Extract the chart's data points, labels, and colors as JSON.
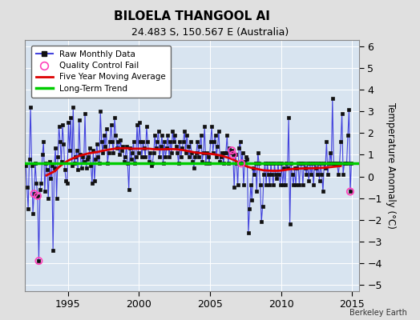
{
  "title": "BILOELA THANGOOL AI",
  "subtitle": "24.483 S, 150.567 E (Australia)",
  "credit": "Berkeley Earth",
  "ylabel": "Temperature Anomaly (°C)",
  "xlim": [
    1992.0,
    2015.5
  ],
  "ylim": [
    -5.3,
    6.3
  ],
  "yticks": [
    -5,
    -4,
    -3,
    -2,
    -1,
    0,
    1,
    2,
    3,
    4,
    5,
    6
  ],
  "xticks": [
    1995,
    2000,
    2005,
    2010,
    2015
  ],
  "green_line_y": 0.62,
  "background_color": "#e0e0e0",
  "plot_background": "#d8e4f0",
  "grid_color": "#ffffff",
  "raw_line_color": "#4444dd",
  "raw_dot_color": "#111111",
  "moving_avg_color": "#dd0000",
  "trend_color": "#00cc00",
  "qc_fail_color": "#ff44bb",
  "raw_data": {
    "times": [
      1992.042,
      1992.125,
      1992.208,
      1992.292,
      1992.375,
      1992.458,
      1992.542,
      1992.625,
      1992.708,
      1992.792,
      1992.875,
      1992.958,
      1993.042,
      1993.125,
      1993.208,
      1993.292,
      1993.375,
      1993.458,
      1993.542,
      1993.625,
      1993.708,
      1993.792,
      1993.875,
      1993.958,
      1994.042,
      1994.125,
      1994.208,
      1994.292,
      1994.375,
      1994.458,
      1994.542,
      1994.625,
      1994.708,
      1994.792,
      1994.875,
      1994.958,
      1995.042,
      1995.125,
      1995.208,
      1995.292,
      1995.375,
      1995.458,
      1995.542,
      1995.625,
      1995.708,
      1995.792,
      1995.875,
      1995.958,
      1996.042,
      1996.125,
      1996.208,
      1996.292,
      1996.375,
      1996.458,
      1996.542,
      1996.625,
      1996.708,
      1996.792,
      1996.875,
      1996.958,
      1997.042,
      1997.125,
      1997.208,
      1997.292,
      1997.375,
      1997.458,
      1997.542,
      1997.625,
      1997.708,
      1997.792,
      1997.875,
      1997.958,
      1998.042,
      1998.125,
      1998.208,
      1998.292,
      1998.375,
      1998.458,
      1998.542,
      1998.625,
      1998.708,
      1998.792,
      1998.875,
      1998.958,
      1999.042,
      1999.125,
      1999.208,
      1999.292,
      1999.375,
      1999.458,
      1999.542,
      1999.625,
      1999.708,
      1999.792,
      1999.875,
      1999.958,
      2000.042,
      2000.125,
      2000.208,
      2000.292,
      2000.375,
      2000.458,
      2000.542,
      2000.625,
      2000.708,
      2000.792,
      2000.875,
      2000.958,
      2001.042,
      2001.125,
      2001.208,
      2001.292,
      2001.375,
      2001.458,
      2001.542,
      2001.625,
      2001.708,
      2001.792,
      2001.875,
      2001.958,
      2002.042,
      2002.125,
      2002.208,
      2002.292,
      2002.375,
      2002.458,
      2002.542,
      2002.625,
      2002.708,
      2002.792,
      2002.875,
      2002.958,
      2003.042,
      2003.125,
      2003.208,
      2003.292,
      2003.375,
      2003.458,
      2003.542,
      2003.625,
      2003.708,
      2003.792,
      2003.875,
      2003.958,
      2004.042,
      2004.125,
      2004.208,
      2004.292,
      2004.375,
      2004.458,
      2004.542,
      2004.625,
      2004.708,
      2004.792,
      2004.875,
      2004.958,
      2005.042,
      2005.125,
      2005.208,
      2005.292,
      2005.375,
      2005.458,
      2005.542,
      2005.625,
      2005.708,
      2005.792,
      2005.875,
      2005.958,
      2006.042,
      2006.125,
      2006.208,
      2006.292,
      2006.375,
      2006.458,
      2006.542,
      2006.625,
      2006.708,
      2006.792,
      2006.875,
      2006.958,
      2007.042,
      2007.125,
      2007.208,
      2007.292,
      2007.375,
      2007.458,
      2007.542,
      2007.625,
      2007.708,
      2007.792,
      2007.875,
      2007.958,
      2008.042,
      2008.125,
      2008.208,
      2008.292,
      2008.375,
      2008.458,
      2008.542,
      2008.625,
      2008.708,
      2008.792,
      2008.875,
      2008.958,
      2009.042,
      2009.125,
      2009.208,
      2009.292,
      2009.375,
      2009.458,
      2009.542,
      2009.625,
      2009.708,
      2009.792,
      2009.875,
      2009.958,
      2010.042,
      2010.125,
      2010.208,
      2010.292,
      2010.375,
      2010.458,
      2010.542,
      2010.625,
      2010.708,
      2010.792,
      2010.875,
      2010.958,
      2011.042,
      2011.125,
      2011.208,
      2011.292,
      2011.375,
      2011.458,
      2011.542,
      2011.625,
      2011.708,
      2011.792,
      2011.875,
      2011.958,
      2012.042,
      2012.125,
      2012.208,
      2012.292,
      2012.375,
      2012.458,
      2012.542,
      2012.625,
      2012.708,
      2012.792,
      2012.875,
      2012.958,
      2013.042,
      2013.125,
      2013.208,
      2013.292,
      2013.375,
      2013.458,
      2013.542,
      2013.625,
      2013.708,
      2013.792,
      2013.875,
      2013.958,
      2014.042,
      2014.125,
      2014.208,
      2014.292,
      2014.375,
      2014.458,
      2014.542,
      2014.625,
      2014.708,
      2014.792,
      2014.875,
      2014.958
    ],
    "values": [
      0.5,
      -0.5,
      -1.5,
      0.8,
      3.2,
      0.5,
      -1.7,
      -0.8,
      0.6,
      -0.3,
      -0.9,
      -3.9,
      -0.6,
      -0.3,
      1.0,
      1.6,
      -0.7,
      0.6,
      0.3,
      -1.0,
      0.7,
      -0.1,
      0.5,
      -3.4,
      0.4,
      1.3,
      -1.0,
      0.9,
      2.3,
      1.6,
      0.7,
      2.4,
      1.5,
      0.3,
      -0.2,
      -0.3,
      2.5,
      1.2,
      2.7,
      0.5,
      3.2,
      0.6,
      0.9,
      1.2,
      0.3,
      2.6,
      1.0,
      0.4,
      0.9,
      0.7,
      2.9,
      0.4,
      0.8,
      0.9,
      1.3,
      0.5,
      -0.3,
      1.2,
      -0.2,
      0.8,
      1.5,
      0.9,
      0.6,
      3.0,
      1.6,
      1.1,
      1.9,
      1.4,
      2.2,
      0.6,
      1.1,
      1.6,
      2.4,
      1.6,
      1.1,
      2.7,
      1.9,
      1.3,
      1.6,
      1.0,
      1.7,
      1.2,
      1.4,
      0.7,
      0.9,
      1.4,
      0.6,
      -0.6,
      1.3,
      0.8,
      1.1,
      1.6,
      0.6,
      0.9,
      2.4,
      1.1,
      2.5,
      1.6,
      0.9,
      1.6,
      1.3,
      0.9,
      2.3,
      1.6,
      0.7,
      1.1,
      0.5,
      0.6,
      1.1,
      1.9,
      1.3,
      1.6,
      2.1,
      0.9,
      1.4,
      1.9,
      0.6,
      1.6,
      0.9,
      1.3,
      1.9,
      0.9,
      1.6,
      1.1,
      2.1,
      1.6,
      1.9,
      1.4,
      1.1,
      0.6,
      1.6,
      0.9,
      1.3,
      1.6,
      2.1,
      1.1,
      1.9,
      1.4,
      0.9,
      1.6,
      1.1,
      0.7,
      0.4,
      0.9,
      1.1,
      1.6,
      0.9,
      1.4,
      1.9,
      0.7,
      1.1,
      2.3,
      0.6,
      1.1,
      0.9,
      0.6,
      1.6,
      2.3,
      1.1,
      1.6,
      1.9,
      0.9,
      1.4,
      2.1,
      0.7,
      0.9,
      1.1,
      0.6,
      1.1,
      1.1,
      1.9,
      0.6,
      1.3,
      1.1,
      1.2,
      1.0,
      -0.5,
      1.0,
      0.6,
      -0.4,
      1.3,
      1.6,
      0.6,
      1.1,
      -0.4,
      0.7,
      0.9,
      0.8,
      -2.6,
      -1.5,
      -0.4,
      -1.1,
      0.4,
      0.1,
      0.6,
      -0.7,
      1.1,
      0.6,
      -0.4,
      -2.1,
      -1.4,
      0.1,
      0.6,
      -0.4,
      0.6,
      0.1,
      -0.4,
      0.6,
      0.1,
      -0.4,
      0.6,
      0.1,
      -0.1,
      0.6,
      0.1,
      -0.4,
      0.6,
      -0.4,
      0.4,
      -0.4,
      0.6,
      0.4,
      2.7,
      -2.2,
      0.6,
      0.1,
      -0.4,
      0.4,
      -0.4,
      0.4,
      0.6,
      -0.4,
      0.6,
      0.6,
      -0.4,
      0.6,
      0.4,
      0.1,
      0.6,
      -0.2,
      0.6,
      0.1,
      0.6,
      -0.4,
      0.6,
      0.4,
      0.1,
      0.6,
      -0.2,
      0.6,
      0.1,
      -0.7,
      0.6,
      0.4,
      1.6,
      0.1,
      0.6,
      1.1,
      0.6,
      3.6,
      0.6,
      0.6,
      0.6,
      0.6,
      0.1,
      0.6,
      1.6,
      2.9,
      0.1,
      0.6,
      0.6,
      0.6,
      1.9,
      3.1,
      -0.7,
      0.6
    ],
    "qc_fail_times": [
      1992.625,
      1992.875,
      1992.958,
      2006.542,
      2006.625,
      2007.208,
      2014.875
    ],
    "qc_fail_values": [
      -0.8,
      -0.9,
      -3.9,
      1.2,
      1.0,
      0.6,
      -0.7
    ]
  },
  "moving_avg_times": [
    1993.5,
    1993.8,
    1994.1,
    1994.4,
    1994.7,
    1995.0,
    1995.3,
    1995.6,
    1995.9,
    1996.2,
    1996.5,
    1996.8,
    1997.1,
    1997.4,
    1997.7,
    1998.0,
    1998.3,
    1998.6,
    1998.9,
    1999.2,
    1999.5,
    1999.8,
    2000.1,
    2000.4,
    2000.7,
    2001.0,
    2001.3,
    2001.6,
    2001.9,
    2002.2,
    2002.5,
    2002.8,
    2003.1,
    2003.4,
    2003.7,
    2004.0,
    2004.3,
    2004.6,
    2004.9,
    2005.2,
    2005.5,
    2005.8,
    2006.1,
    2006.4,
    2006.7,
    2007.0,
    2007.3,
    2007.6,
    2007.9,
    2008.2,
    2008.5,
    2008.8,
    2009.1,
    2009.4,
    2009.7,
    2010.0,
    2010.3,
    2010.6,
    2010.9,
    2011.2,
    2011.5,
    2011.8,
    2012.1,
    2012.4,
    2012.7,
    2013.0,
    2013.3,
    2013.6,
    2013.9,
    2014.2
  ],
  "moving_avg_values": [
    0.05,
    0.15,
    0.25,
    0.45,
    0.6,
    0.72,
    0.82,
    0.9,
    0.97,
    1.02,
    1.07,
    1.1,
    1.13,
    1.18,
    1.22,
    1.25,
    1.28,
    1.3,
    1.3,
    1.3,
    1.28,
    1.28,
    1.28,
    1.28,
    1.28,
    1.26,
    1.25,
    1.25,
    1.26,
    1.26,
    1.26,
    1.24,
    1.22,
    1.18,
    1.14,
    1.1,
    1.08,
    1.06,
    1.05,
    1.03,
    1.0,
    0.96,
    0.9,
    0.84,
    0.76,
    0.65,
    0.56,
    0.46,
    0.4,
    0.36,
    0.32,
    0.28,
    0.27,
    0.26,
    0.26,
    0.27,
    0.3,
    0.33,
    0.35,
    0.36,
    0.37,
    0.37,
    0.38,
    0.38,
    0.39,
    0.4,
    0.42,
    0.44,
    0.46,
    0.48
  ],
  "trend_y": 0.62,
  "figsize": [
    5.24,
    4.0
  ],
  "dpi": 100
}
